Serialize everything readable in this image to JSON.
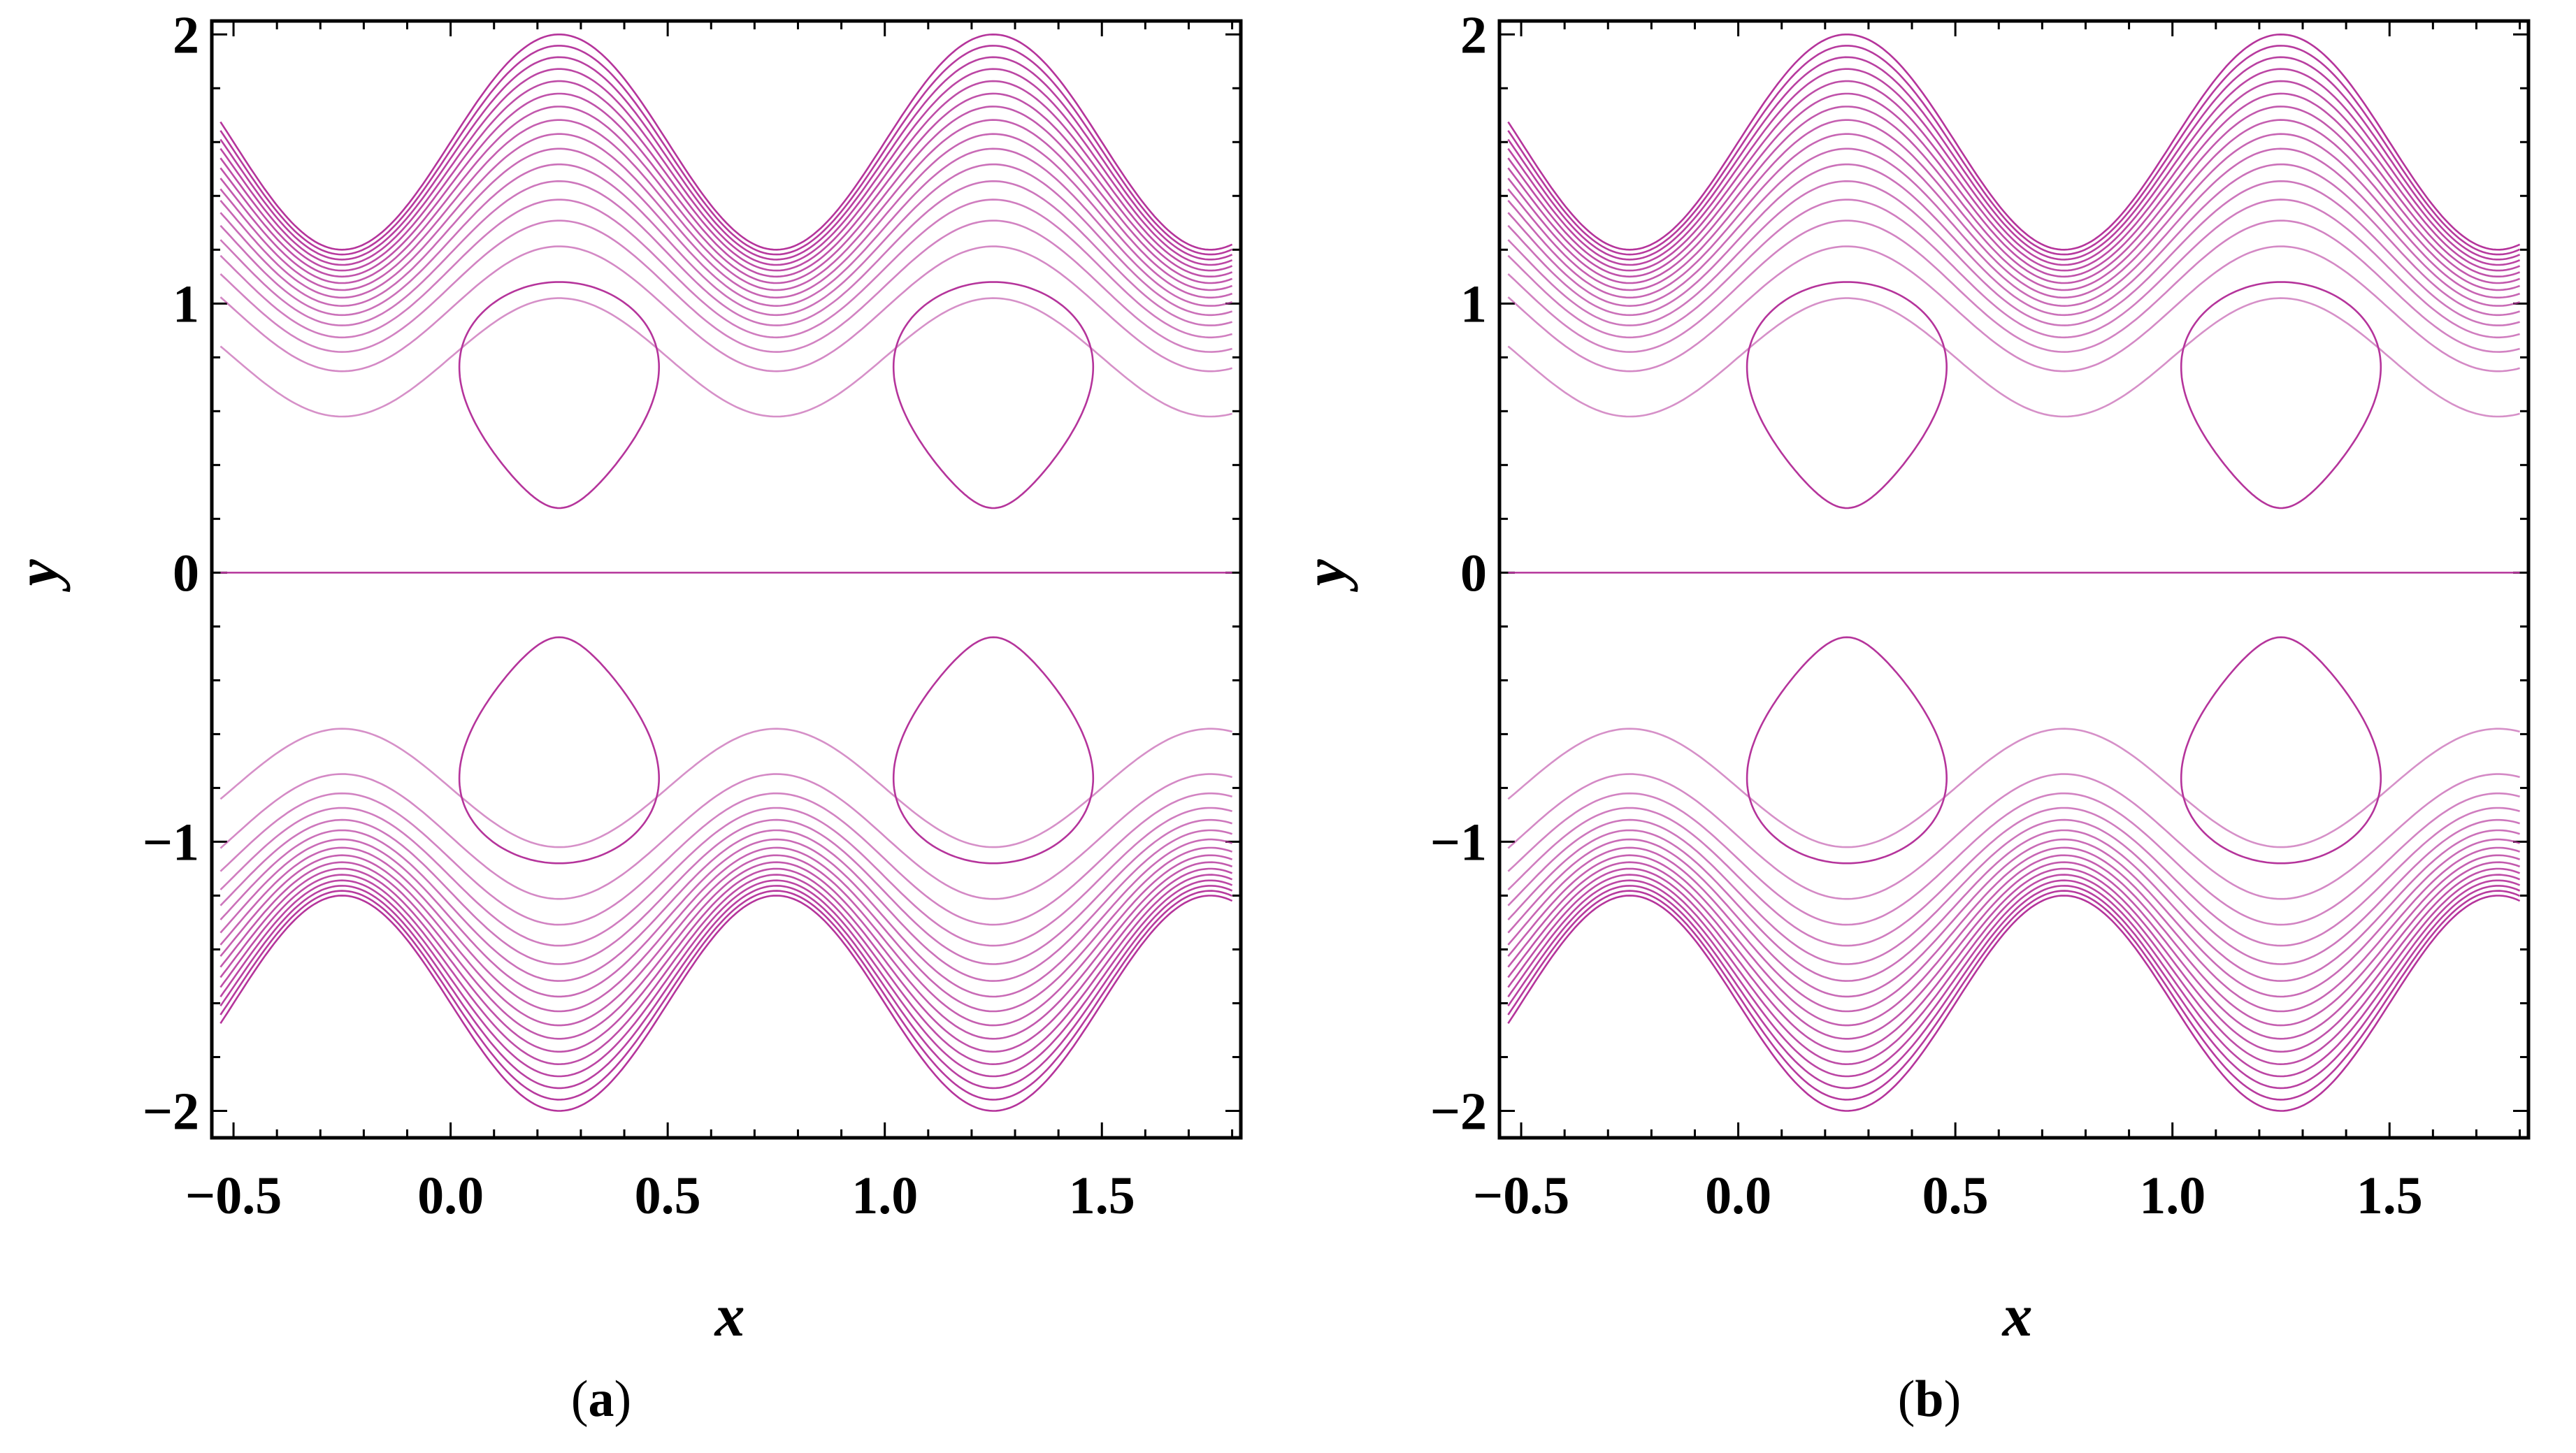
{
  "figure": {
    "panels": [
      {
        "caption_open": "(",
        "caption_letter": "a",
        "caption_close": ")"
      },
      {
        "caption_open": "(",
        "caption_letter": "b",
        "caption_close": ")"
      }
    ]
  },
  "chart_data": [
    {
      "type": "line",
      "subtype": "contour",
      "title": "",
      "xlabel": "x",
      "ylabel": "y",
      "xlim": [
        -0.55,
        1.82
      ],
      "ylim": [
        -2.1,
        2.05
      ],
      "xticks": [
        -0.5,
        0.0,
        0.5,
        1.0,
        1.5
      ],
      "xtick_labels": [
        "−0.5",
        "0.0",
        "0.5",
        "1.0",
        "1.5"
      ],
      "yticks": [
        -2,
        -1,
        0,
        1,
        2
      ],
      "ytick_labels": [
        "−2",
        "−1",
        "0",
        "1",
        "2"
      ],
      "grid": false,
      "line_color": "#b5349b",
      "wall_bands": {
        "lower_offset": [
          -1.6,
          -1.0
        ],
        "upper_offset": [
          1.0,
          1.6
        ],
        "amplitude": 0.4,
        "wavelength": 1.0,
        "crest_x": 0.25
      },
      "centerline_y": 0,
      "trapped_boluses": [
        {
          "x_center": 0.25,
          "y_range": [
            0.24,
            1.08
          ]
        },
        {
          "x_center": 1.25,
          "y_range": [
            0.24,
            1.08
          ]
        },
        {
          "x_center": 0.25,
          "y_range": [
            -1.08,
            -0.24
          ]
        },
        {
          "x_center": 1.25,
          "y_range": [
            -1.08,
            -0.24
          ]
        }
      ]
    },
    {
      "type": "line",
      "subtype": "contour",
      "title": "",
      "xlabel": "x",
      "ylabel": "y",
      "xlim": [
        -0.55,
        1.82
      ],
      "ylim": [
        -2.1,
        2.05
      ],
      "xticks": [
        -0.5,
        0.0,
        0.5,
        1.0,
        1.5
      ],
      "xtick_labels": [
        "−0.5",
        "0.0",
        "0.5",
        "1.0",
        "1.5"
      ],
      "yticks": [
        -2,
        -1,
        0,
        1,
        2
      ],
      "ytick_labels": [
        "−2",
        "−1",
        "0",
        "1",
        "2"
      ],
      "grid": false,
      "line_color": "#b5349b",
      "wall_bands": {
        "lower_offset": [
          -1.6,
          -1.0
        ],
        "upper_offset": [
          1.0,
          1.6
        ],
        "amplitude": 0.4,
        "wavelength": 1.0,
        "crest_x": 0.25
      },
      "centerline_y": 0,
      "trapped_boluses": [
        {
          "x_center": 0.25,
          "y_range": [
            0.24,
            1.08
          ]
        },
        {
          "x_center": 1.25,
          "y_range": [
            0.24,
            1.08
          ]
        },
        {
          "x_center": 0.25,
          "y_range": [
            -1.08,
            -0.24
          ]
        },
        {
          "x_center": 1.25,
          "y_range": [
            -1.08,
            -0.24
          ]
        }
      ]
    }
  ]
}
